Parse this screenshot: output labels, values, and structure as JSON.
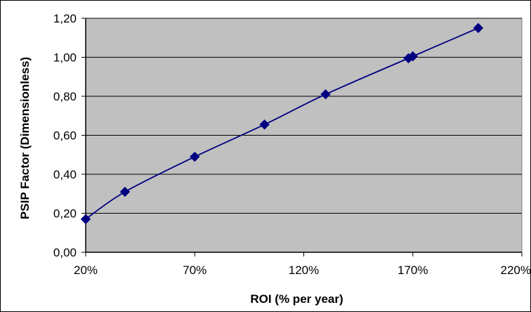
{
  "chart_data": {
    "type": "line",
    "title": "",
    "xlabel": "ROI (% per year)",
    "ylabel": "PSIP Factor (Dimensionless)",
    "xlim": [
      20,
      220
    ],
    "ylim": [
      0,
      1.2
    ],
    "x_tick_labels": [
      "20%",
      "70%",
      "120%",
      "170%",
      "220%"
    ],
    "y_tick_labels": [
      "0,00",
      "0,20",
      "0,40",
      "0,60",
      "0,80",
      "1,00",
      "1,20"
    ],
    "grid": true,
    "legend": "none",
    "series": [
      {
        "x": [
          20,
          38,
          70,
          102,
          130,
          168,
          170,
          200
        ],
        "y": [
          0.17,
          0.31,
          0.49,
          0.655,
          0.81,
          0.995,
          1.005,
          1.15
        ]
      }
    ],
    "colors": {
      "plot_background": "#c0c0c0",
      "series_color": "#000080",
      "gridline_color": "#000000",
      "frame_color": "#808080"
    }
  }
}
